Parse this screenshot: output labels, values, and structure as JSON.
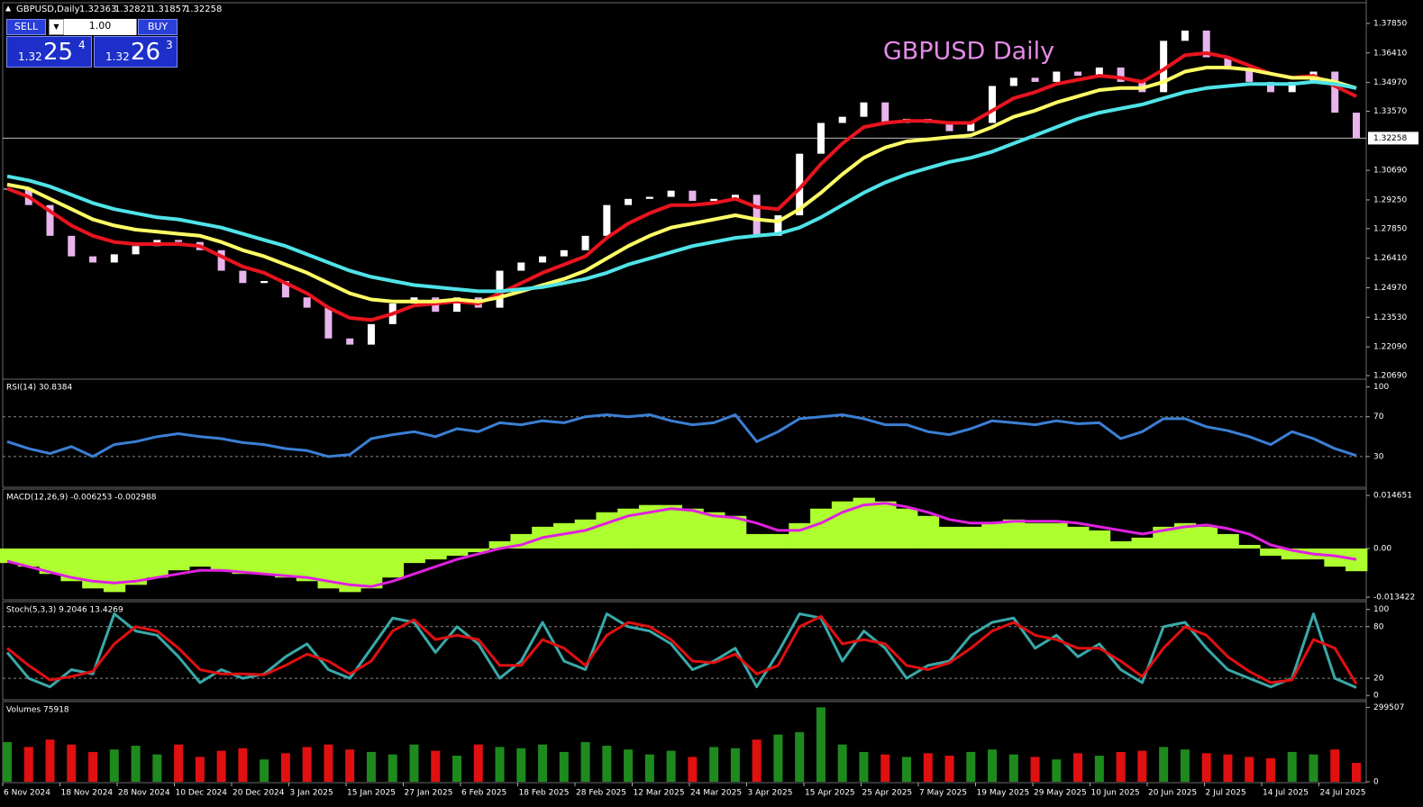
{
  "header": {
    "symbol": "GBPUSD,Daily",
    "ohlc": [
      1.32363,
      1.32821,
      1.31857,
      1.32258
    ]
  },
  "trade_panel": {
    "sell": "SELL",
    "buy": "BUY",
    "lot": "1.00",
    "bid": {
      "big": "1.32",
      "pips": "25",
      "frac": "4"
    },
    "ask": {
      "big": "1.32",
      "pips": "26",
      "frac": "3"
    }
  },
  "xlabels": [
    "6 Nov 2024",
    "18 Nov 2024",
    "28 Nov 2024",
    "10 Dec 2024",
    "20 Dec 2024",
    "3 Jan 2025",
    "15 Jan 2025",
    "27 Jan 2025",
    "6 Feb 2025",
    "18 Feb 2025",
    "28 Feb 2025",
    "12 Mar 2025",
    "24 Mar 2025",
    "3 Apr 2025",
    "15 Apr 2025",
    "25 Apr 2025",
    "7 May 2025",
    "19 May 2025",
    "29 May 2025",
    "10 Jun 2025",
    "20 Jun 2025",
    "2 Jul 2025",
    "14 Jul 2025",
    "24 Jul 2025"
  ],
  "chart_data": [
    {
      "type": "candlestick",
      "title": "GBPUSD Daily",
      "color": "#e7b4ec",
      "up_color": "#ffffff",
      "close": [
        1.298,
        1.29,
        1.275,
        1.265,
        1.262,
        1.266,
        1.27,
        1.273,
        1.272,
        1.268,
        1.258,
        1.252,
        1.253,
        1.245,
        1.24,
        1.225,
        1.222,
        1.232,
        1.242,
        1.245,
        1.238,
        1.245,
        1.24,
        1.258,
        1.262,
        1.265,
        1.268,
        1.275,
        1.29,
        1.293,
        1.294,
        1.297,
        1.292,
        1.293,
        1.295,
        1.275,
        1.285,
        1.315,
        1.33,
        1.333,
        1.34,
        1.33,
        1.332,
        1.33,
        1.326,
        1.33,
        1.348,
        1.352,
        1.35,
        1.355,
        1.353,
        1.357,
        1.35,
        1.345,
        1.37,
        1.375,
        1.362,
        1.356,
        1.35,
        1.345,
        1.35,
        1.355,
        1.335,
        1.32258
      ],
      "series": [
        {
          "color": "#e8141e",
          "values": [
            1.298,
            1.294,
            1.287,
            1.28,
            1.275,
            1.272,
            1.271,
            1.271,
            1.271,
            1.27,
            1.265,
            1.26,
            1.257,
            1.252,
            1.247,
            1.24,
            1.235,
            1.234,
            1.237,
            1.241,
            1.242,
            1.243,
            1.242,
            1.247,
            1.252,
            1.257,
            1.261,
            1.265,
            1.274,
            1.281,
            1.286,
            1.29,
            1.29,
            1.291,
            1.293,
            1.289,
            1.288,
            1.298,
            1.31,
            1.32,
            1.328,
            1.33,
            1.331,
            1.331,
            1.33,
            1.33,
            1.336,
            1.342,
            1.345,
            1.349,
            1.351,
            1.353,
            1.352,
            1.35,
            1.356,
            1.363,
            1.364,
            1.362,
            1.358,
            1.354,
            1.352,
            1.353,
            1.348,
            1.343
          ]
        },
        {
          "color": "#ffff66",
          "values": [
            1.3,
            1.298,
            1.293,
            1.288,
            1.283,
            1.28,
            1.278,
            1.277,
            1.276,
            1.275,
            1.272,
            1.268,
            1.265,
            1.261,
            1.257,
            1.252,
            1.247,
            1.244,
            1.243,
            1.243,
            1.243,
            1.244,
            1.243,
            1.245,
            1.248,
            1.251,
            1.254,
            1.258,
            1.264,
            1.27,
            1.275,
            1.279,
            1.281,
            1.283,
            1.285,
            1.283,
            1.282,
            1.288,
            1.296,
            1.305,
            1.313,
            1.318,
            1.321,
            1.322,
            1.323,
            1.324,
            1.328,
            1.333,
            1.336,
            1.34,
            1.343,
            1.346,
            1.347,
            1.347,
            1.35,
            1.355,
            1.357,
            1.357,
            1.356,
            1.354,
            1.352,
            1.352,
            1.35,
            1.347
          ]
        },
        {
          "color": "#4fe3e8",
          "values": [
            1.304,
            1.302,
            1.299,
            1.295,
            1.291,
            1.288,
            1.286,
            1.284,
            1.283,
            1.281,
            1.279,
            1.276,
            1.273,
            1.27,
            1.266,
            1.262,
            1.258,
            1.255,
            1.253,
            1.251,
            1.25,
            1.249,
            1.248,
            1.248,
            1.249,
            1.25,
            1.252,
            1.254,
            1.257,
            1.261,
            1.264,
            1.267,
            1.27,
            1.272,
            1.274,
            1.275,
            1.276,
            1.279,
            1.284,
            1.29,
            1.296,
            1.301,
            1.305,
            1.308,
            1.311,
            1.313,
            1.316,
            1.32,
            1.324,
            1.328,
            1.332,
            1.335,
            1.337,
            1.339,
            1.342,
            1.345,
            1.347,
            1.348,
            1.349,
            1.349,
            1.349,
            1.35,
            1.349,
            1.347
          ]
        }
      ],
      "last_price": 1.32258,
      "ylim": [
        1.2056,
        1.3877
      ],
      "yticks": [
        {
          "value": 1.3785,
          "label": "1.37850"
        },
        {
          "value": 1.3641,
          "label": "1.36410"
        },
        {
          "value": 1.3497,
          "label": "1.34970"
        },
        {
          "value": 1.3357,
          "label": "1.33570"
        },
        {
          "value": 1.3069,
          "label": "1.30690"
        },
        {
          "value": 1.2925,
          "label": "1.29250"
        },
        {
          "value": 1.2785,
          "label": "1.27850"
        },
        {
          "value": 1.2641,
          "label": "1.26410"
        },
        {
          "value": 1.2497,
          "label": "1.24970"
        },
        {
          "value": 1.2353,
          "label": "1.23530"
        },
        {
          "value": 1.2209,
          "label": "1.22090"
        },
        {
          "value": 1.2069,
          "label": "1.20690"
        }
      ]
    },
    {
      "type": "line",
      "label": "RSI(14) 30.8384",
      "ylim": [
        0,
        106
      ],
      "yticks": [
        30,
        70,
        100
      ],
      "levels": [
        30,
        70
      ],
      "series": [
        {
          "color": "#3b7fd4",
          "values": [
            45,
            38,
            33,
            40,
            30,
            42,
            45,
            50,
            53,
            50,
            48,
            44,
            42,
            38,
            36,
            30,
            32,
            48,
            52,
            55,
            50,
            58,
            55,
            64,
            62,
            66,
            64,
            70,
            72,
            70,
            72,
            66,
            62,
            64,
            72,
            45,
            55,
            68,
            70,
            72,
            68,
            62,
            62,
            55,
            52,
            58,
            66,
            64,
            62,
            66,
            63,
            64,
            48,
            55,
            68,
            68,
            60,
            56,
            50,
            42,
            55,
            48,
            38,
            31
          ]
        }
      ]
    },
    {
      "type": "macd",
      "label": "MACD(12,26,9) -0.006253 -0.002988",
      "ylim": [
        -0.0139,
        0.0159
      ],
      "yticks": [
        0.014651,
        {
          "value": 0,
          "label": "0.00"
        },
        -0.013422
      ],
      "histogram": {
        "color": "#adff2f",
        "values": [
          -0.004,
          -0.005,
          -0.007,
          -0.009,
          -0.011,
          -0.012,
          -0.01,
          -0.008,
          -0.006,
          -0.005,
          -0.006,
          -0.007,
          -0.007,
          -0.008,
          -0.009,
          -0.011,
          -0.012,
          -0.011,
          -0.008,
          -0.004,
          -0.003,
          -0.002,
          -0.001,
          0.002,
          0.004,
          0.006,
          0.007,
          0.008,
          0.01,
          0.011,
          0.012,
          0.012,
          0.011,
          0.01,
          0.009,
          0.004,
          0.004,
          0.007,
          0.011,
          0.013,
          0.014,
          0.013,
          0.011,
          0.009,
          0.006,
          0.006,
          0.007,
          0.008,
          0.007,
          0.007,
          0.006,
          0.005,
          0.002,
          0.003,
          0.006,
          0.007,
          0.006,
          0.004,
          0.001,
          -0.002,
          -0.003,
          -0.003,
          -0.005,
          -0.006253
        ]
      },
      "series": [
        {
          "color": "#e020e0",
          "values": [
            -0.0035,
            -0.005,
            -0.0065,
            -0.008,
            -0.009,
            -0.0095,
            -0.009,
            -0.008,
            -0.007,
            -0.006,
            -0.006,
            -0.0065,
            -0.007,
            -0.0075,
            -0.008,
            -0.009,
            -0.01,
            -0.0105,
            -0.009,
            -0.007,
            -0.005,
            -0.003,
            -0.0015,
            0.0,
            0.001,
            0.003,
            0.004,
            0.005,
            0.007,
            0.009,
            0.01,
            0.011,
            0.0105,
            0.009,
            0.0085,
            0.007,
            0.005,
            0.005,
            0.007,
            0.01,
            0.012,
            0.0125,
            0.0115,
            0.01,
            0.008,
            0.007,
            0.007,
            0.0075,
            0.0075,
            0.0075,
            0.007,
            0.006,
            0.005,
            0.004,
            0.005,
            0.006,
            0.0065,
            0.0055,
            0.004,
            0.001,
            -0.0005,
            -0.0015,
            -0.002,
            -0.002988
          ]
        }
      ]
    },
    {
      "type": "line",
      "label": "Stoch(5,3,3) 9.2046 13.4269",
      "ylim": [
        -4,
        107
      ],
      "yticks": [
        0,
        20,
        80,
        100
      ],
      "levels": [
        20,
        80
      ],
      "series": [
        {
          "color": "#3aa8a8",
          "values": [
            50,
            20,
            10,
            30,
            25,
            95,
            75,
            70,
            45,
            15,
            30,
            20,
            25,
            45,
            60,
            30,
            20,
            55,
            90,
            85,
            50,
            80,
            60,
            20,
            40,
            85,
            40,
            30,
            95,
            80,
            75,
            60,
            30,
            40,
            55,
            10,
            50,
            95,
            90,
            40,
            75,
            55,
            20,
            35,
            40,
            70,
            85,
            90,
            55,
            70,
            45,
            60,
            30,
            15,
            80,
            85,
            55,
            30,
            20,
            10,
            20,
            95,
            20,
            9.2046
          ]
        },
        {
          "color": "#e01010",
          "values": [
            55,
            35,
            18,
            22,
            28,
            60,
            80,
            75,
            55,
            30,
            25,
            25,
            24,
            35,
            48,
            40,
            25,
            40,
            75,
            88,
            65,
            70,
            65,
            35,
            35,
            65,
            55,
            35,
            70,
            85,
            80,
            65,
            40,
            38,
            48,
            25,
            35,
            80,
            92,
            60,
            65,
            60,
            35,
            30,
            38,
            55,
            75,
            85,
            70,
            65,
            55,
            55,
            40,
            22,
            55,
            80,
            70,
            45,
            28,
            15,
            18,
            65,
            55,
            13.4269
          ]
        }
      ]
    },
    {
      "type": "volume",
      "label": "Volumes 75918",
      "ylim": [
        0,
        315500
      ],
      "yticks": [
        0,
        299507
      ],
      "up_color": "#1e8a1e",
      "down_color": "#e01010",
      "values": [
        160000,
        140000,
        170000,
        150000,
        120000,
        130000,
        145000,
        110000,
        150000,
        100000,
        125000,
        135000,
        90000,
        115000,
        140000,
        150000,
        130000,
        120000,
        110000,
        150000,
        125000,
        105000,
        150000,
        140000,
        135000,
        150000,
        120000,
        160000,
        145000,
        130000,
        110000,
        125000,
        100000,
        140000,
        135000,
        170000,
        190000,
        200000,
        299507,
        150000,
        120000,
        110000,
        100000,
        115000,
        105000,
        120000,
        130000,
        110000,
        100000,
        90000,
        115000,
        105000,
        120000,
        125000,
        140000,
        130000,
        115000,
        110000,
        100000,
        95000,
        120000,
        110000,
        130000,
        75918
      ]
    }
  ]
}
